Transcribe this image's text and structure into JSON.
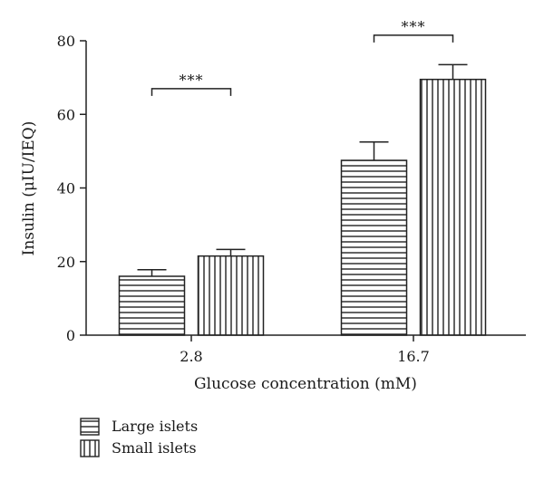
{
  "chart_data": {
    "type": "bar",
    "xlabel": "Glucose concentration (mM)",
    "ylabel": "Insulin (μIU/IEQ)",
    "ylim": [
      0,
      80
    ],
    "yticks": [
      0,
      20,
      40,
      60,
      80
    ],
    "categories": [
      "2.8",
      "16.7"
    ],
    "series": [
      {
        "name": "Large islets",
        "values": [
          16,
          47.5
        ],
        "errors": [
          1.8,
          5
        ],
        "pattern": "horizontal-hatch"
      },
      {
        "name": "Small islets",
        "values": [
          21.5,
          69.5
        ],
        "errors": [
          1.8,
          4
        ],
        "pattern": "vertical-hatch"
      }
    ],
    "annotations": [
      {
        "category_index": 0,
        "label": "***",
        "y": 67
      },
      {
        "category_index": 1,
        "label": "***",
        "y": 81.5
      }
    ],
    "legend_position": "bottom-left",
    "grid": false
  }
}
